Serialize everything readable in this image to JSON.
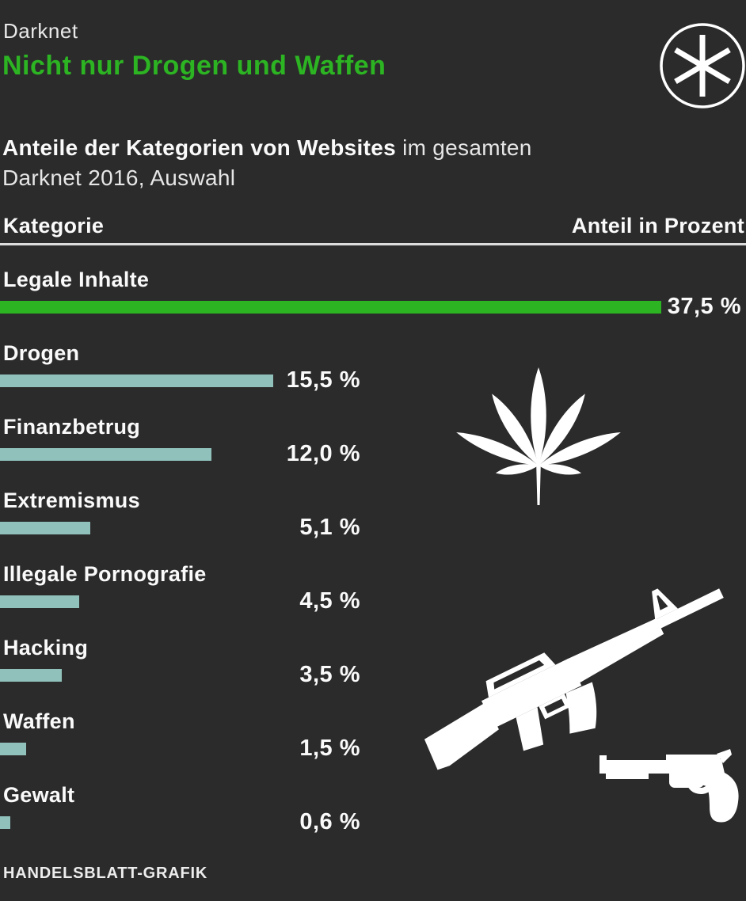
{
  "header": {
    "kicker": "Darknet",
    "title": "Nicht nur Drogen und Waffen",
    "subtitle_bold": "Anteile der Kategorien von Websites",
    "subtitle_rest": " im gesamten",
    "subtitle_line2": "Darknet 2016, Auswahl"
  },
  "table": {
    "col_left": "Kategorie",
    "col_right": "Anteil in Prozent"
  },
  "chart_data": {
    "type": "bar",
    "orientation": "horizontal",
    "title": "Nicht nur Drogen und Waffen",
    "subtitle": "Anteile der Kategorien von Websites im gesamten Darknet 2016, Auswahl",
    "categories": [
      "Legale Inhalte",
      "Drogen",
      "Finanzbetrug",
      "Extremismus",
      "Illegale Pornografie",
      "Hacking",
      "Waffen",
      "Gewalt"
    ],
    "values": [
      37.5,
      15.5,
      12.0,
      5.1,
      4.5,
      3.5,
      1.5,
      0.6
    ],
    "value_labels": [
      "37,5 %",
      "15,5 %",
      "12,0 %",
      "5,1 %",
      "4,5 %",
      "3,5 %",
      "1,5 %",
      "0,6 %"
    ],
    "unit": "Prozent",
    "xlabel": "Anteil in Prozent",
    "xlim": [
      0,
      42
    ],
    "grid": false,
    "legend": false,
    "highlight_index": 0
  },
  "colors": {
    "background": "#2b2b2b",
    "highlight_green": "#2cb423",
    "bar_teal": "#90c1bb",
    "text_white": "#fafafa"
  },
  "icons": {
    "logo": "asterisk-icon",
    "decorations": [
      "cannabis-leaf-icon",
      "assault-rifle-icon",
      "revolver-icon"
    ]
  },
  "footer": {
    "credit": "HANDELSBLATT-GRAFIK"
  }
}
